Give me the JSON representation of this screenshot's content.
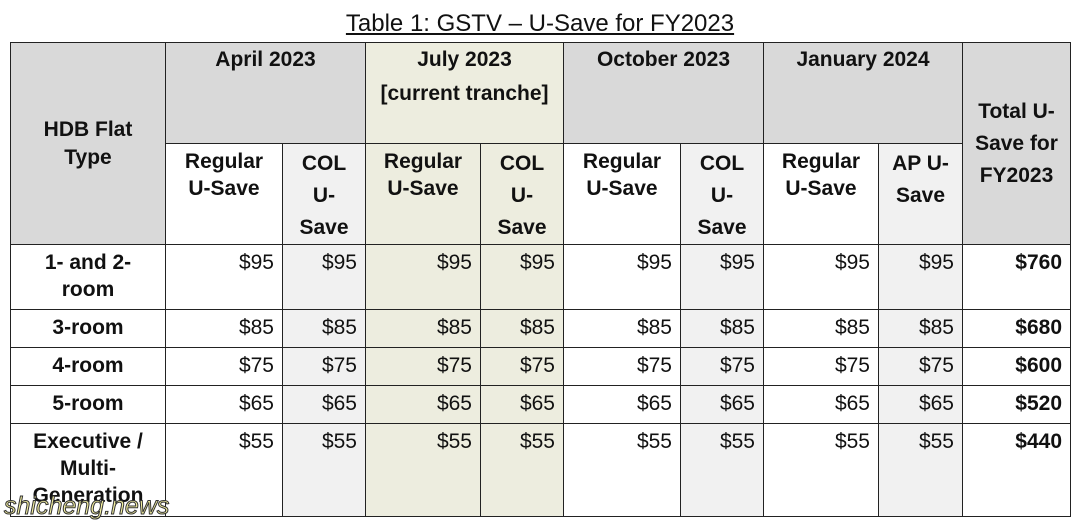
{
  "title": "Table 1: GSTV – U-Save for FY2023",
  "table": {
    "row_header": "HDB Flat Type",
    "periods": [
      [
        "April 2023"
      ],
      [
        "July 2023",
        "[current tranche]"
      ],
      [
        "October 2023"
      ],
      [
        "January 2024"
      ]
    ],
    "total_header": "Total U-Save for FY2023",
    "sub_headers": [
      "Regular U-Save",
      "COL U-Save",
      "Regular U-Save",
      "COL U-Save",
      "Regular U-Save",
      "COL U-Save",
      "Regular U-Save",
      "AP U-Save"
    ],
    "rows": [
      {
        "type": "1- and 2-room",
        "values": [
          "$95",
          "$95",
          "$95",
          "$95",
          "$95",
          "$95",
          "$95",
          "$95"
        ],
        "total": "$760"
      },
      {
        "type": "3-room",
        "values": [
          "$85",
          "$85",
          "$85",
          "$85",
          "$85",
          "$85",
          "$85",
          "$85"
        ],
        "total": "$680"
      },
      {
        "type": "4-room",
        "values": [
          "$75",
          "$75",
          "$75",
          "$75",
          "$75",
          "$75",
          "$75",
          "$75"
        ],
        "total": "$600"
      },
      {
        "type": "5-room",
        "values": [
          "$65",
          "$65",
          "$65",
          "$65",
          "$65",
          "$65",
          "$65",
          "$65"
        ],
        "total": "$520"
      },
      {
        "type": "Executive / Multi-Generation",
        "values": [
          "$55",
          "$55",
          "$55",
          "$55",
          "$55",
          "$55",
          "$55",
          "$55"
        ],
        "total": "$440"
      }
    ]
  },
  "watermark": "shicheng.news"
}
